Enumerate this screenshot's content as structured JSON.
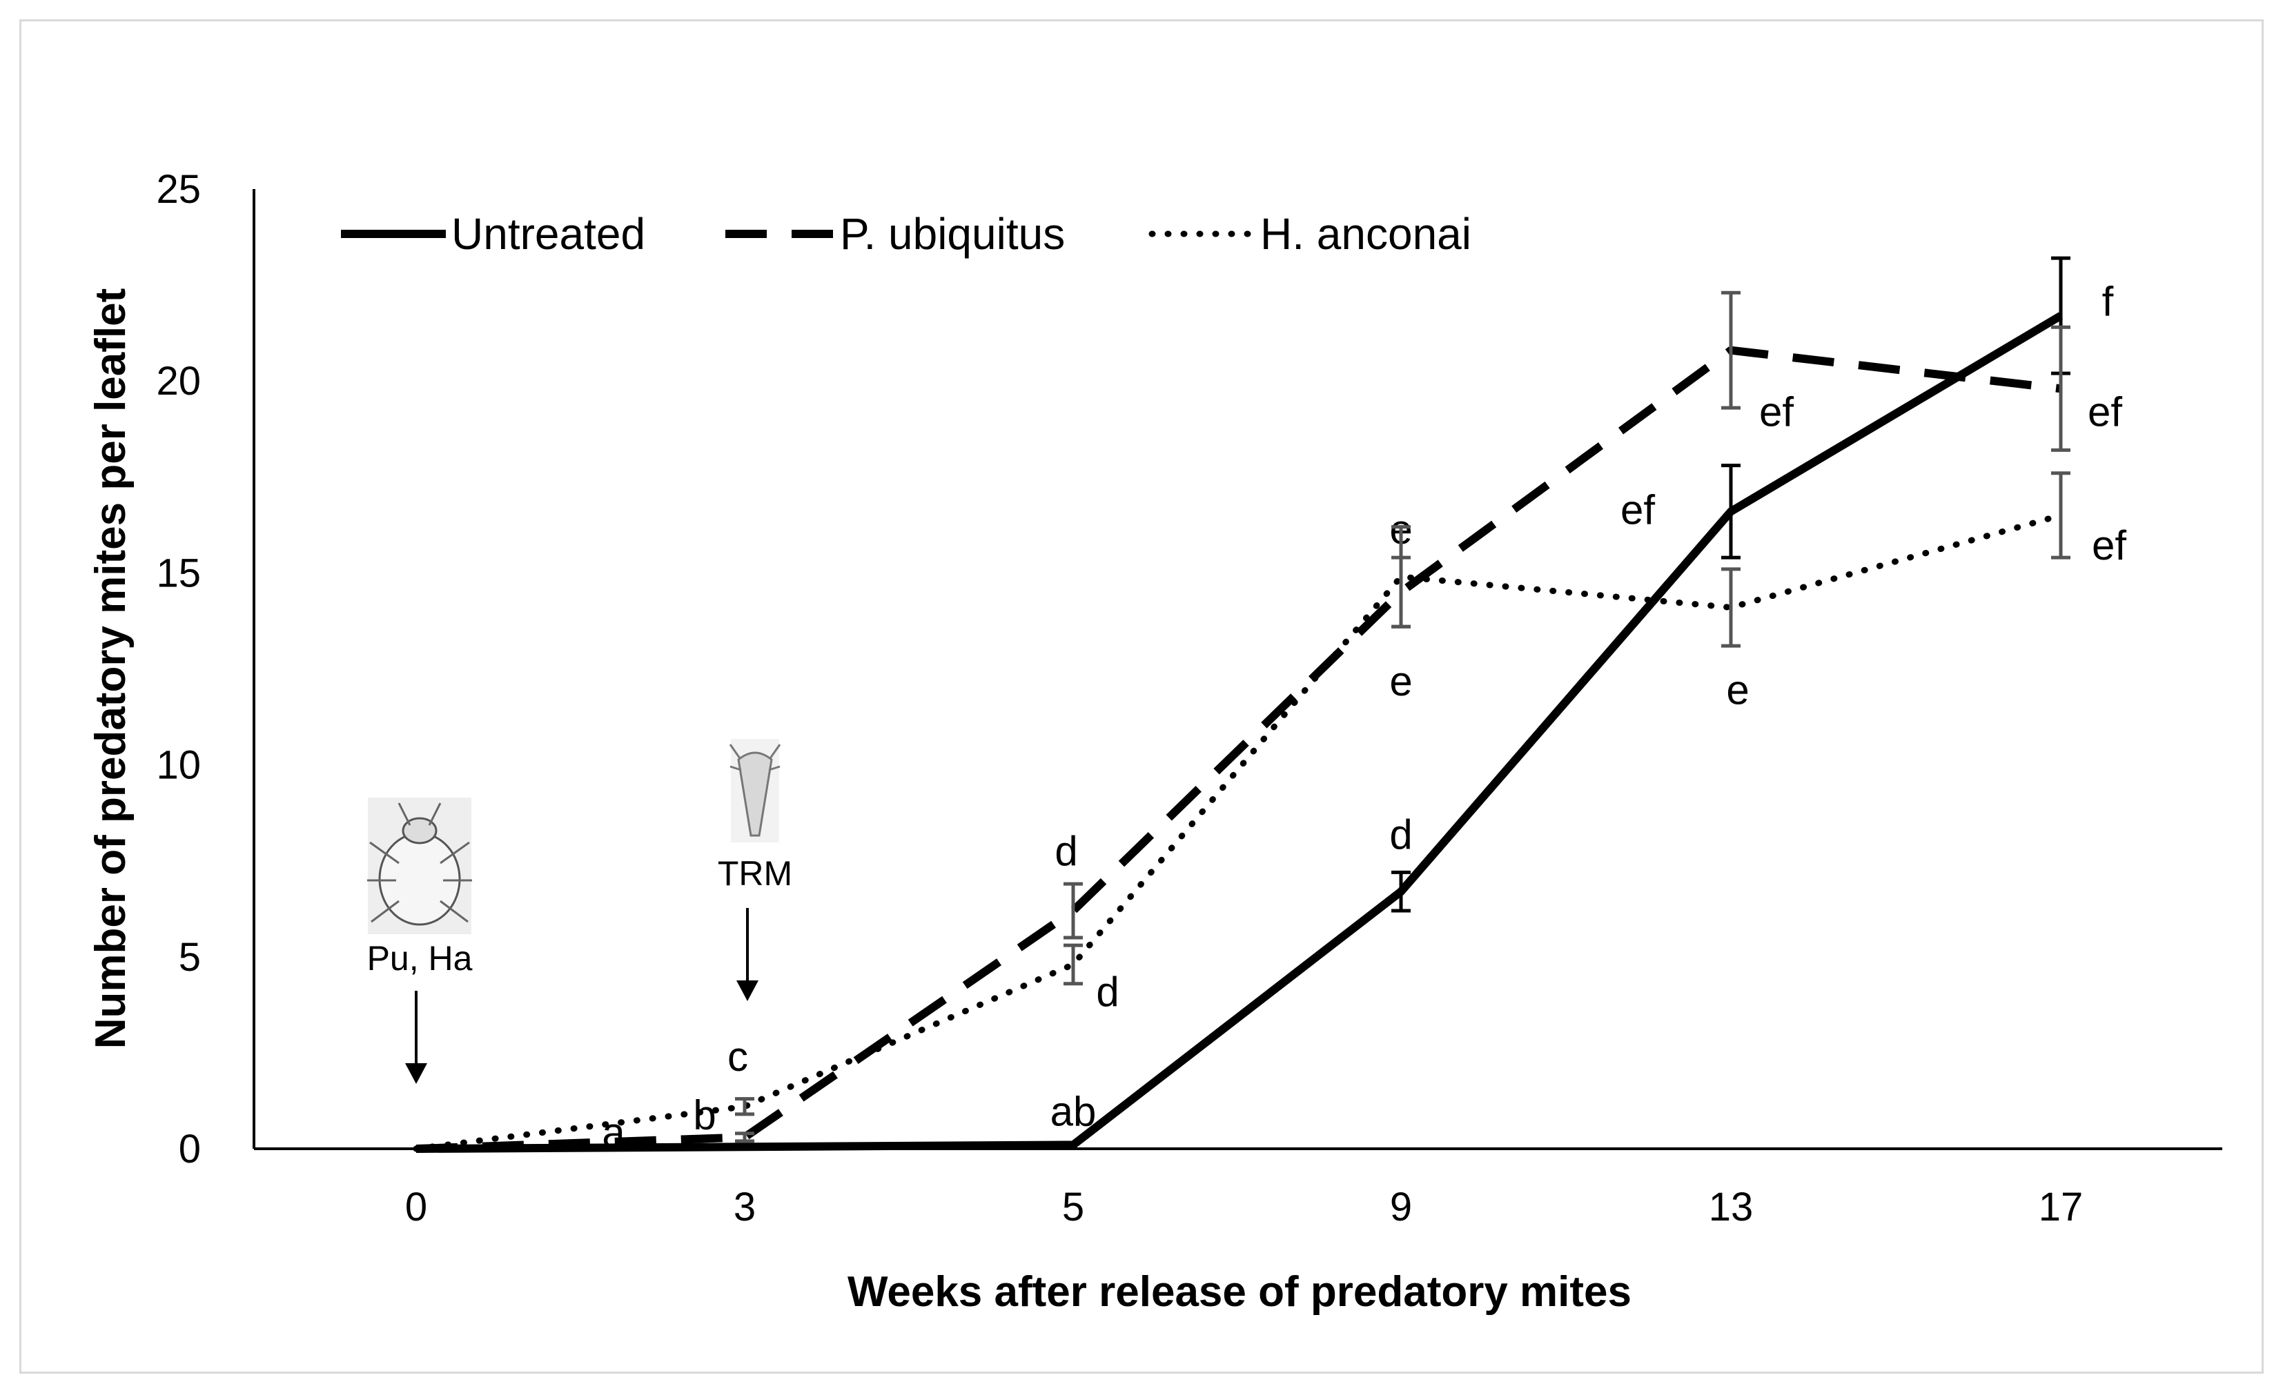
{
  "chart_data": {
    "type": "line",
    "title": "",
    "xlabel": "Weeks after release of predatory mites",
    "ylabel": "Number of predatory mites per leaflet",
    "categories": [
      "0",
      "3",
      "5",
      "9",
      "13",
      "17"
    ],
    "ylim": [
      0,
      25
    ],
    "yticks": [
      "0",
      "5",
      "10",
      "15",
      "20",
      "25"
    ],
    "grid": false,
    "legend_position": "top-left",
    "series": [
      {
        "name": "Untreated",
        "style": "solid",
        "values": [
          0,
          0.05,
          0.1,
          6.7,
          16.6,
          21.7
        ],
        "errors": [
          0,
          0,
          0,
          0.5,
          1.2,
          1.5
        ],
        "labels": [
          "",
          "a",
          "ab",
          "d",
          "ef",
          "f"
        ]
      },
      {
        "name": "P. ubiquitus",
        "style": "dashed",
        "values": [
          0,
          0.3,
          6.2,
          14.5,
          20.8,
          19.8
        ],
        "errors": [
          0,
          0.1,
          0.7,
          0.9,
          1.5,
          1.6
        ],
        "labels": [
          "",
          "b",
          "d",
          "e",
          "ef",
          "ef"
        ]
      },
      {
        "name": "H. anconai",
        "style": "dotted",
        "values": [
          0,
          1.1,
          4.8,
          14.9,
          14.1,
          16.5
        ],
        "errors": [
          0,
          0.2,
          0.5,
          1.3,
          1.0,
          1.1
        ],
        "labels": [
          "",
          "c",
          "d",
          "e",
          "e",
          "ef"
        ]
      }
    ],
    "annotations": [
      {
        "text": "Pu, Ha",
        "x": "0",
        "description": "release of P. ubiquitus and H. anconai"
      },
      {
        "text": "TRM",
        "x": "3",
        "description": "release of tomato russet mite"
      }
    ]
  }
}
